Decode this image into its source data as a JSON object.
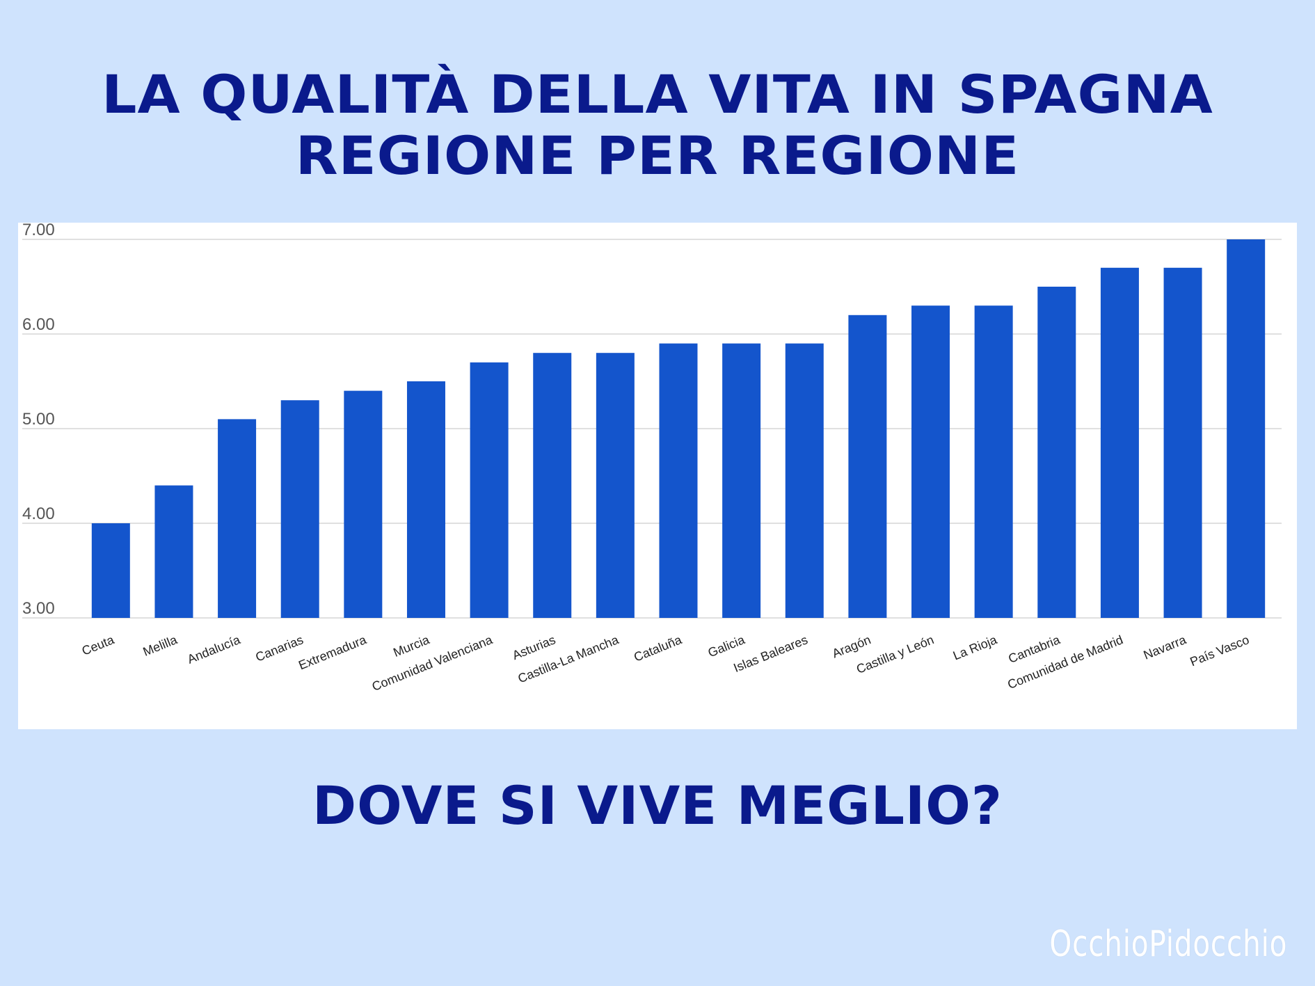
{
  "header": {
    "title_line1": "LA QUALITÀ DELLA VITA IN SPAGNA",
    "title_line2": "REGIONE PER REGIONE"
  },
  "footer": {
    "question": "DOVE SI VIVE MEGLIO?",
    "watermark": "OcchioPidocchio"
  },
  "colors": {
    "background": "#cfe3fd",
    "title": "#0a1a8c",
    "bar": "#1455cc",
    "grid": "#d6d6d6",
    "tick_text": "#555555"
  },
  "chart_data": {
    "type": "bar",
    "title": "",
    "xlabel": "",
    "ylabel": "",
    "ylim": [
      3,
      7
    ],
    "yticks": [
      3,
      4,
      5,
      6,
      7
    ],
    "ytick_labels": [
      "3.00",
      "4.00",
      "5.00",
      "6.00",
      "7.00"
    ],
    "grid": true,
    "categories": [
      "Ceuta",
      "Melilla",
      "Andalucía",
      "Canarias",
      "Extremadura",
      "Murcia",
      "Comunidad Valenciana",
      "Asturias",
      "Castilla-La Mancha",
      "Cataluña",
      "Galicia",
      "Islas Baleares",
      "Aragón",
      "Castilla y León",
      "La Rioja",
      "Cantabria",
      "Comunidad de Madrid",
      "Navarra",
      "País Vasco"
    ],
    "values": [
      4.0,
      4.4,
      5.1,
      5.3,
      5.4,
      5.5,
      5.7,
      5.8,
      5.8,
      5.9,
      5.9,
      5.9,
      6.2,
      6.3,
      6.3,
      6.5,
      6.7,
      6.7,
      7.0
    ]
  }
}
